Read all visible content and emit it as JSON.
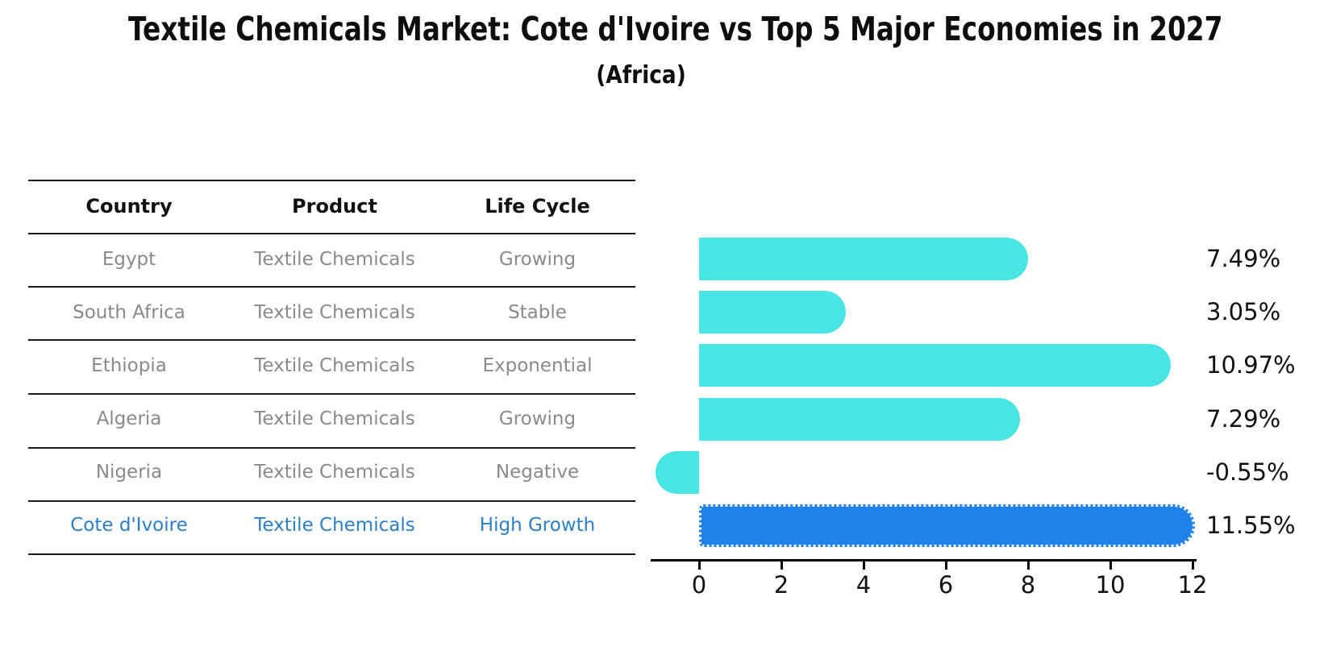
{
  "title": "Textile Chemicals Market: Cote d'Ivoire vs Top 5 Major Economies in 2027",
  "subtitle": "(Africa)",
  "table": {
    "headers": [
      "Country",
      "Product",
      "Life Cycle"
    ],
    "rows": [
      {
        "country": "Egypt",
        "product": "Textile Chemicals",
        "life_cycle": "Growing",
        "highlight": false
      },
      {
        "country": "South Africa",
        "product": "Textile Chemicals",
        "life_cycle": "Stable",
        "highlight": false
      },
      {
        "country": "Ethiopia",
        "product": "Textile Chemicals",
        "life_cycle": "Exponential",
        "highlight": false
      },
      {
        "country": "Algeria",
        "product": "Textile Chemicals",
        "life_cycle": "Growing",
        "highlight": false
      },
      {
        "country": "Nigeria",
        "product": "Textile Chemicals",
        "life_cycle": "Negative",
        "highlight": false
      },
      {
        "country": "Cote d'Ivoire",
        "product": "Textile Chemicals",
        "life_cycle": "High Growth",
        "highlight": true
      }
    ]
  },
  "chart_data": {
    "type": "bar",
    "orientation": "horizontal",
    "title": "Textile Chemicals Market: Cote d'Ivoire vs Top 5 Major Economies in 2027 (Africa)",
    "categories": [
      "Egypt",
      "South Africa",
      "Ethiopia",
      "Algeria",
      "Nigeria",
      "Cote d'Ivoire"
    ],
    "values": [
      7.49,
      3.05,
      10.97,
      7.29,
      -0.55,
      11.55
    ],
    "value_labels": [
      "7.49%",
      "3.05%",
      "10.97%",
      "7.29%",
      "-0.55%",
      "11.55%"
    ],
    "x_ticks": [
      0,
      2,
      4,
      6,
      8,
      10,
      12
    ],
    "xlim": [
      -1.2,
      12.1
    ],
    "xlabel": "",
    "ylabel": "",
    "grid": false,
    "legend": false,
    "bar_color": "#48e5e3",
    "highlight_index": 5,
    "highlight_color": "#1f82ea",
    "highlight_edge_style": "dotted",
    "bar_cap_style": "round"
  },
  "colors": {
    "background": "#ffffff",
    "table_line": "#1a1a1a",
    "row_text": "#8a8a8a",
    "header_text": "#111111",
    "highlight_text": "#2b7fc4",
    "axis": "#000000"
  }
}
